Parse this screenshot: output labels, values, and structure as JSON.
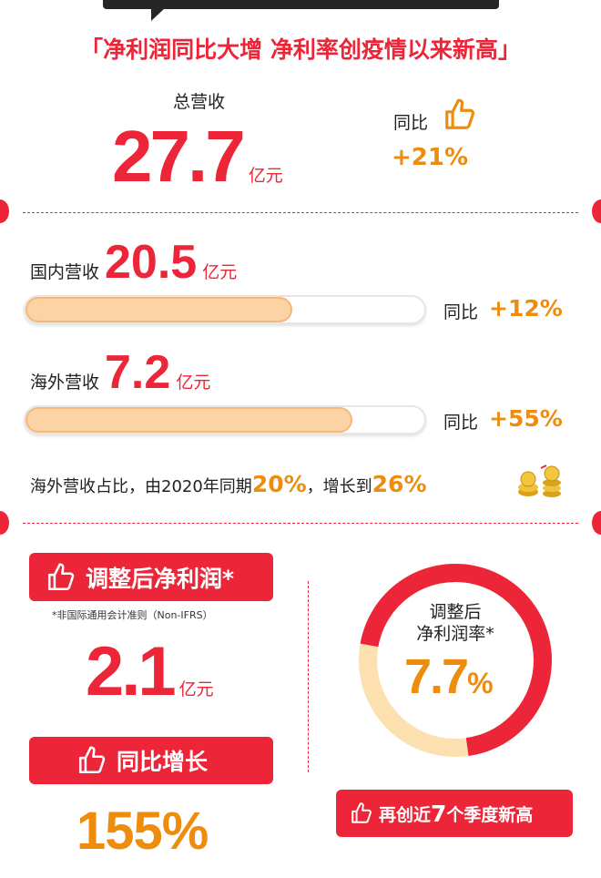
{
  "headline": "「净利润同比大增 净利率创疫情以来新高」",
  "total": {
    "label": "总营收",
    "value": "27.7",
    "unit": "亿元",
    "yoy_label": "同比",
    "yoy": "+21%"
  },
  "domestic": {
    "label": "国内营收",
    "value": "20.5",
    "unit": "亿元",
    "yoy_label": "同比",
    "yoy": "+12%",
    "bar_fraction": 0.67
  },
  "overseas": {
    "label": "海外营收",
    "value": "7.2",
    "unit": "亿元",
    "yoy_label": "同比",
    "yoy": "+55%",
    "bar_fraction": 0.82
  },
  "share": {
    "text1": "海外营收占比，由2020年同期",
    "v1": "20%",
    "text2": "，增长到",
    "v2": "26%"
  },
  "adjusted": {
    "label": "调整后净利润*",
    "note": "*非国际通用会计准则（Non-IFRS）",
    "value": "2.1",
    "unit": "亿元",
    "yoy_label": "同比增长",
    "yoy": "155%"
  },
  "margin": {
    "label1": "调整后",
    "label2": "净利润率*",
    "value": "7.7",
    "pct": "%",
    "badge_pre": "再创近",
    "badge_num": "7",
    "badge_post": "个季度新高",
    "ring_fraction": 0.7
  },
  "colors": {
    "red": "#ec2538",
    "orange": "#ee8c0e",
    "beige": "#fde0b0"
  }
}
